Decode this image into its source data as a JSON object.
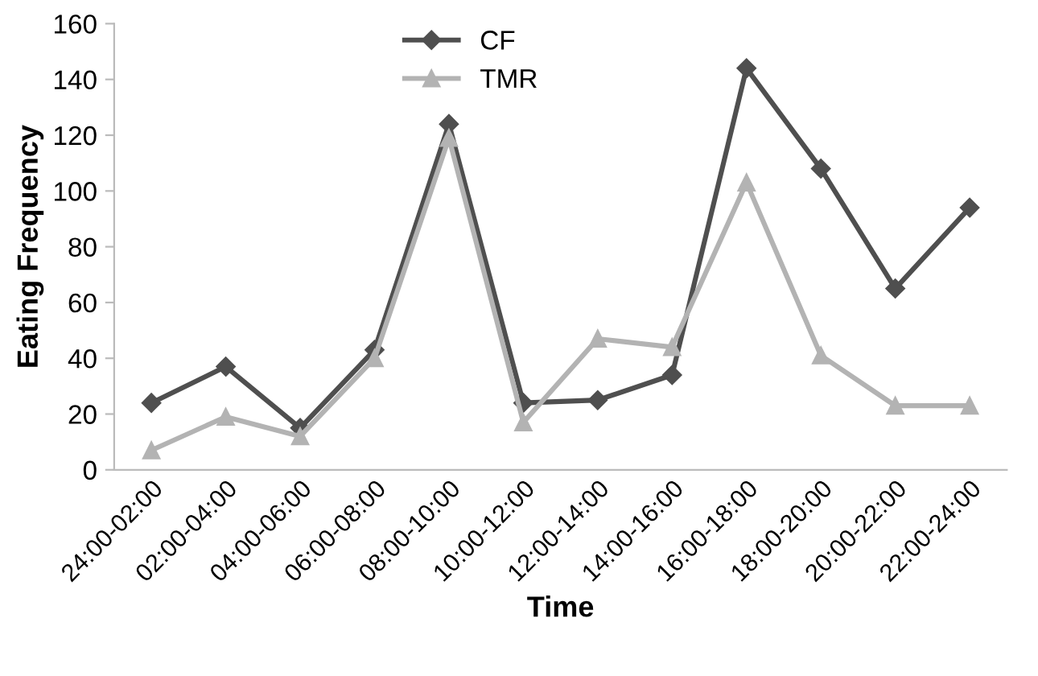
{
  "chart_data": {
    "type": "line",
    "xlabel": "Time",
    "ylabel": "Eating Frequency",
    "categories": [
      "24:00-02:00",
      "02:00-04:00",
      "04:00-06:00",
      "06:00-08:00",
      "08:00-10:00",
      "10:00-12:00",
      "12:00-14:00",
      "14:00-16:00",
      "16:00-18:00",
      "18:00-20:00",
      "20:00-22:00",
      "22:00-24:00"
    ],
    "series": [
      {
        "name": "CF",
        "color": "#4f4f4f",
        "marker": "diamond",
        "values": [
          24,
          37,
          15,
          43,
          124,
          24,
          25,
          34,
          144,
          108,
          65,
          94
        ]
      },
      {
        "name": "TMR",
        "color": "#b3b3b3",
        "marker": "triangle",
        "values": [
          7,
          19,
          12,
          40,
          119,
          17,
          47,
          44,
          103,
          41,
          23,
          23
        ]
      }
    ],
    "ylim": [
      0,
      160
    ],
    "yticks": [
      0,
      20,
      40,
      60,
      80,
      100,
      120,
      140,
      160
    ],
    "grid": false,
    "legend": "top"
  }
}
